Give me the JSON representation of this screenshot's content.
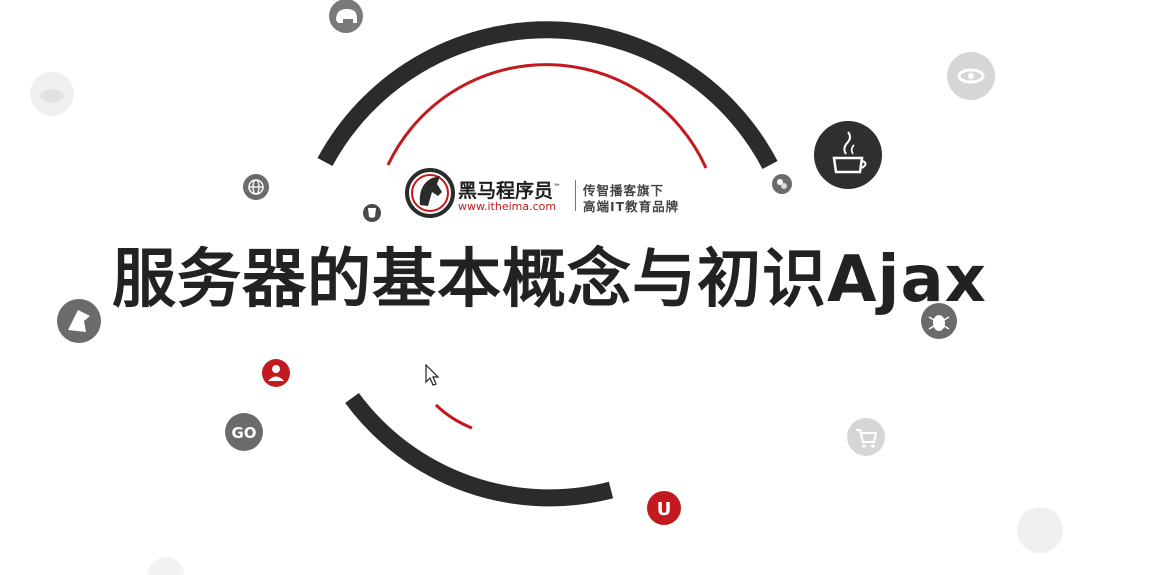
{
  "slide": {
    "title": "服务器的基本概念与初识Ajax"
  },
  "logo": {
    "name": "黑马程序员",
    "trademark": "™",
    "url": "www.itheima.com",
    "slogan_line1": "传智播客旗下",
    "slogan_line2": "高端IT教育品牌"
  },
  "icons": {
    "go_label": "GO",
    "u_label": "U"
  },
  "colors": {
    "accent_red": "#c21a1f",
    "arc_dark": "#2b2b2b",
    "icon_grey": "#6b6b6b",
    "icon_light": "#d9d9d9"
  }
}
